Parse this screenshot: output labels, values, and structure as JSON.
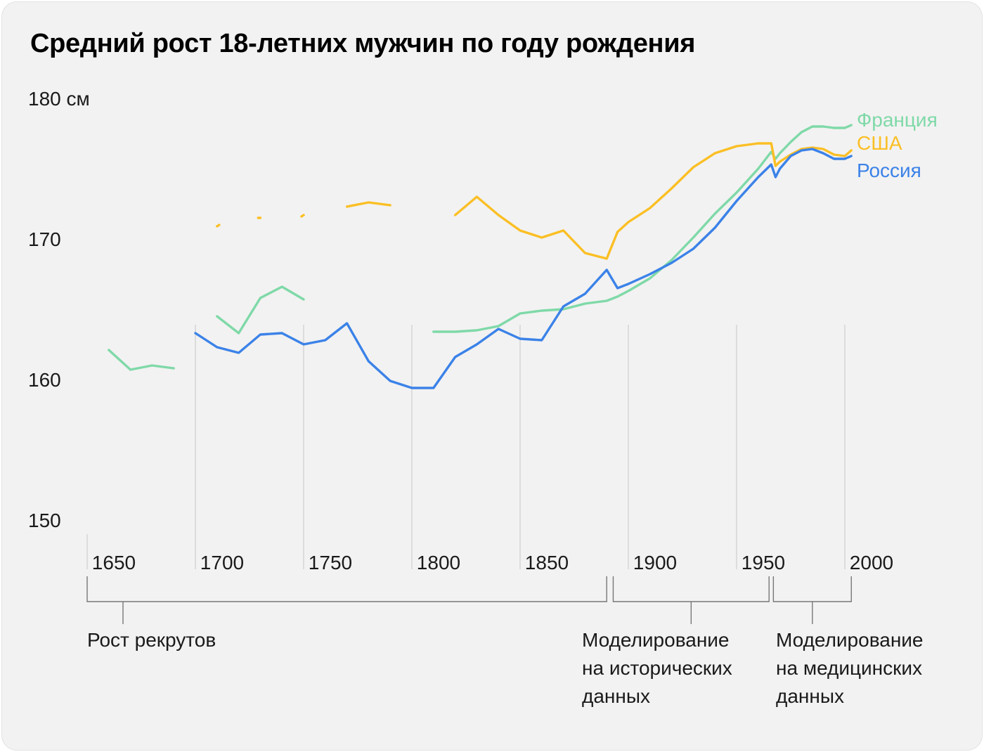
{
  "chart_data": {
    "type": "line",
    "title": "Средний рост 18-летних мужчин по году рождения",
    "y_tick_labels": [
      "180 см",
      "170",
      "160",
      "150"
    ],
    "y_ticks": [
      180,
      170,
      160,
      150
    ],
    "ylim": [
      150,
      180
    ],
    "xlim": [
      1640,
      2000
    ],
    "x_tick_labels": [
      "1650",
      "1700",
      "1750",
      "1800",
      "1850",
      "1900",
      "1950",
      "2000"
    ],
    "x_ticks": [
      1650,
      1700,
      1750,
      1800,
      1850,
      1900,
      1950,
      2000
    ],
    "gridline_years": [
      1690,
      1740,
      1790,
      1840,
      1890,
      1940,
      1990
    ],
    "series": [
      {
        "name": "Франция",
        "color": "#7fd9a8",
        "segments": [
          [
            [
              1650,
              162.1
            ],
            [
              1660,
              160.7
            ],
            [
              1670,
              161.0
            ],
            [
              1680,
              160.8
            ]
          ],
          [
            [
              1700,
              164.5
            ],
            [
              1710,
              163.3
            ],
            [
              1720,
              165.8
            ],
            [
              1730,
              166.6
            ],
            [
              1740,
              165.7
            ]
          ],
          [
            [
              1800,
              163.4
            ],
            [
              1810,
              163.4
            ],
            [
              1820,
              163.5
            ],
            [
              1830,
              163.8
            ],
            [
              1840,
              164.7
            ],
            [
              1850,
              164.9
            ],
            [
              1860,
              165.0
            ],
            [
              1870,
              165.4
            ],
            [
              1880,
              165.6
            ],
            [
              1885,
              165.9
            ],
            [
              1890,
              166.3
            ],
            [
              1900,
              167.2
            ],
            [
              1910,
              168.5
            ],
            [
              1920,
              170.1
            ],
            [
              1930,
              171.8
            ],
            [
              1940,
              173.3
            ],
            [
              1950,
              175.0
            ],
            [
              1956,
              176.2
            ],
            [
              1958,
              175.7
            ],
            [
              1960,
              176.1
            ],
            [
              1965,
              176.9
            ],
            [
              1970,
              177.6
            ],
            [
              1975,
              178.0
            ],
            [
              1980,
              178.0
            ],
            [
              1985,
              177.9
            ],
            [
              1990,
              177.9
            ],
            [
              1993,
              178.1
            ]
          ]
        ]
      },
      {
        "name": "США",
        "color": "#fbbf24",
        "segments": [
          [
            [
              1700,
              170.9
            ],
            [
              1701,
              171.0
            ]
          ],
          [
            [
              1719,
              171.5
            ],
            [
              1720,
              171.5
            ]
          ],
          [
            [
              1739,
              171.6
            ],
            [
              1740,
              171.7
            ]
          ],
          [
            [
              1760,
              172.3
            ],
            [
              1770,
              172.6
            ],
            [
              1780,
              172.4
            ]
          ],
          [
            [
              1810,
              171.7
            ],
            [
              1820,
              173.0
            ],
            [
              1830,
              171.7
            ],
            [
              1840,
              170.6
            ],
            [
              1850,
              170.1
            ],
            [
              1860,
              170.6
            ],
            [
              1870,
              169.0
            ],
            [
              1880,
              168.6
            ],
            [
              1885,
              170.5
            ],
            [
              1890,
              171.2
            ],
            [
              1900,
              172.2
            ],
            [
              1910,
              173.6
            ],
            [
              1920,
              175.1
            ],
            [
              1930,
              176.1
            ],
            [
              1940,
              176.6
            ],
            [
              1950,
              176.8
            ],
            [
              1956,
              176.8
            ],
            [
              1958,
              175.2
            ],
            [
              1960,
              175.5
            ],
            [
              1965,
              176.0
            ],
            [
              1970,
              176.4
            ],
            [
              1975,
              176.5
            ],
            [
              1980,
              176.4
            ],
            [
              1985,
              176.0
            ],
            [
              1990,
              175.9
            ],
            [
              1993,
              176.3
            ]
          ]
        ]
      },
      {
        "name": "Россия",
        "color": "#3b82e8",
        "segments": [
          [
            [
              1690,
              163.3
            ],
            [
              1700,
              162.3
            ],
            [
              1710,
              161.9
            ],
            [
              1720,
              163.2
            ],
            [
              1730,
              163.3
            ],
            [
              1740,
              162.5
            ],
            [
              1750,
              162.8
            ],
            [
              1760,
              164.0
            ],
            [
              1770,
              161.3
            ],
            [
              1780,
              159.9
            ],
            [
              1790,
              159.4
            ],
            [
              1800,
              159.4
            ],
            [
              1810,
              161.6
            ],
            [
              1820,
              162.5
            ],
            [
              1830,
              163.6
            ],
            [
              1840,
              162.9
            ],
            [
              1850,
              162.8
            ],
            [
              1860,
              165.2
            ],
            [
              1870,
              166.1
            ],
            [
              1880,
              167.8
            ],
            [
              1885,
              166.5
            ],
            [
              1890,
              166.8
            ],
            [
              1900,
              167.5
            ],
            [
              1910,
              168.3
            ],
            [
              1920,
              169.3
            ],
            [
              1930,
              170.8
            ],
            [
              1940,
              172.7
            ],
            [
              1950,
              174.4
            ],
            [
              1956,
              175.3
            ],
            [
              1958,
              174.4
            ],
            [
              1960,
              175.0
            ],
            [
              1965,
              175.9
            ],
            [
              1970,
              176.3
            ],
            [
              1975,
              176.4
            ],
            [
              1980,
              176.1
            ],
            [
              1985,
              175.7
            ],
            [
              1990,
              175.7
            ],
            [
              1993,
              175.9
            ]
          ]
        ]
      }
    ],
    "periods": [
      {
        "label_lines": [
          "Рост рекрутов"
        ],
        "from": 1640,
        "to": 1880
      },
      {
        "label_lines": [
          "Моделирование",
          "на исторических",
          "данных"
        ],
        "from": 1883,
        "to": 1955
      },
      {
        "label_lines": [
          "Моделирование",
          "на медицинских",
          "данных"
        ],
        "from": 1957,
        "to": 1993
      }
    ]
  }
}
